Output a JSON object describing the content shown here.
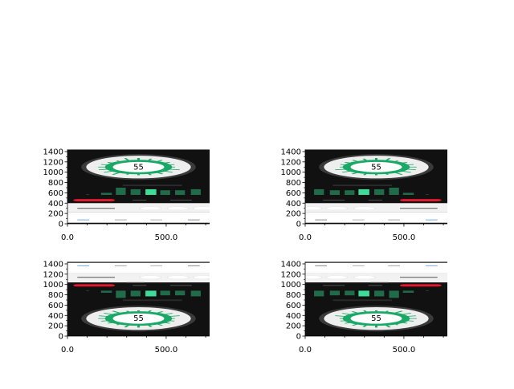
{
  "chart_data": [
    {
      "type": "image",
      "panel": "top-left",
      "flip_horizontal": false,
      "flip_vertical": false,
      "xlim": [
        0,
        720
      ],
      "ylim": [
        0,
        1440
      ],
      "xticks": [
        "0.0",
        "500.0"
      ],
      "yticks": [
        "0",
        "200",
        "400",
        "600",
        "800",
        "1000",
        "1200",
        "1400"
      ],
      "image_text": "55"
    },
    {
      "type": "image",
      "panel": "top-right",
      "flip_horizontal": true,
      "flip_vertical": false,
      "xlim": [
        0,
        720
      ],
      "ylim": [
        0,
        1440
      ],
      "xticks": [
        "0.0",
        "500.0"
      ],
      "yticks": [
        "0",
        "200",
        "400",
        "600",
        "800",
        "1000",
        "1200",
        "1400"
      ],
      "image_text": "55"
    },
    {
      "type": "image",
      "panel": "bottom-left",
      "flip_horizontal": false,
      "flip_vertical": true,
      "xlim": [
        0,
        720
      ],
      "ylim": [
        0,
        1440
      ],
      "xticks": [
        "0.0",
        "500.0"
      ],
      "yticks": [
        "0",
        "200",
        "400",
        "600",
        "800",
        "1000",
        "1200",
        "1400"
      ],
      "image_text": "55"
    },
    {
      "type": "image",
      "panel": "bottom-right",
      "flip_horizontal": true,
      "flip_vertical": true,
      "xlim": [
        0,
        720
      ],
      "ylim": [
        0,
        1440
      ],
      "xticks": [
        "0.0",
        "500.0"
      ],
      "yticks": [
        "0",
        "200",
        "400",
        "600",
        "800",
        "1000",
        "1200",
        "1400"
      ],
      "image_text": "55"
    }
  ],
  "colors": {
    "green": "#1aa866",
    "light_green": "#3ddc97",
    "bar_green": "#1f6b4a",
    "red": "#e8182c",
    "background": "#111111"
  }
}
